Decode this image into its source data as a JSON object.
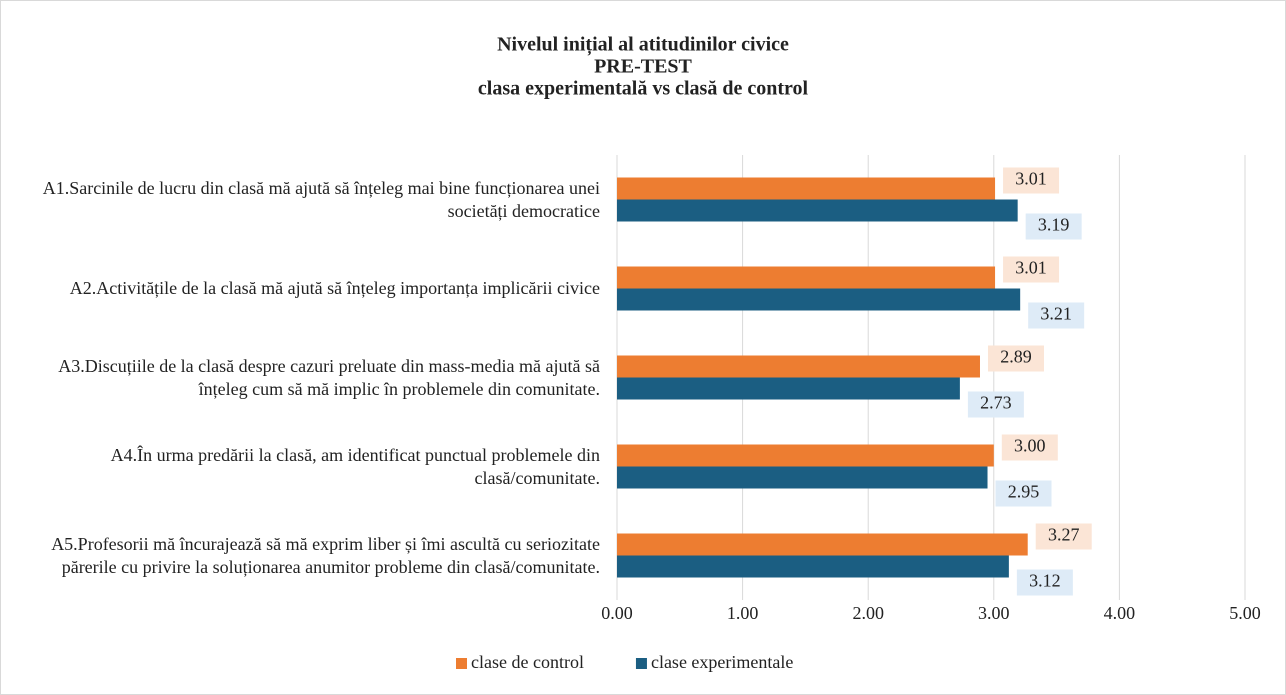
{
  "chart_data": {
    "type": "bar",
    "orientation": "horizontal",
    "title": [
      "Nivelul inițial al atitudinilor civice",
      "PRE-TEST",
      "clasa experimentală vs clasă de control"
    ],
    "categories": [
      "A1.Sarcinile de lucru din clasă mă ajută să înțeleg mai bine funcționarea unei societăți democratice",
      "A2.Activitățile de la clasă mă ajută să înțeleg importanța implicării civice",
      "A3.Discuțiile de la clasă despre cazuri preluate din mass-media mă ajută să înțeleg cum să mă implic în problemele din comunitate.",
      "A4.În urma predării la clasă, am identificat punctual problemele din clasă/comunitate.",
      "A5.Profesorii mă încurajează să mă exprim liber și îmi ascultă cu seriozitate părerile cu privire la soluționarea anumitor probleme din clasă/comunitate."
    ],
    "series": [
      {
        "name": "clase de control",
        "color": "#ed7d31",
        "label_bg": "#fbe5d6",
        "values": [
          3.01,
          3.01,
          2.89,
          3.0,
          3.27
        ],
        "value_labels": [
          "3.01",
          "3.01",
          "2.89",
          "3.00",
          "3.27"
        ]
      },
      {
        "name": "clase experimentale",
        "color": "#1b5e82",
        "label_bg": "#deebf7",
        "values": [
          3.19,
          3.21,
          2.73,
          2.95,
          3.12
        ],
        "value_labels": [
          "3.19",
          "3.21",
          "2.73",
          "2.95",
          "3.12"
        ]
      }
    ],
    "xlim": [
      0,
      5
    ],
    "xticks": [
      {
        "value": 0,
        "label": "0.00"
      },
      {
        "value": 1,
        "label": "1.00"
      },
      {
        "value": 2,
        "label": "2.00"
      },
      {
        "value": 3,
        "label": "3.00"
      },
      {
        "value": 4,
        "label": "4.00"
      },
      {
        "value": 5,
        "label": "5.00"
      }
    ],
    "grid": true,
    "legend": "bottom"
  }
}
